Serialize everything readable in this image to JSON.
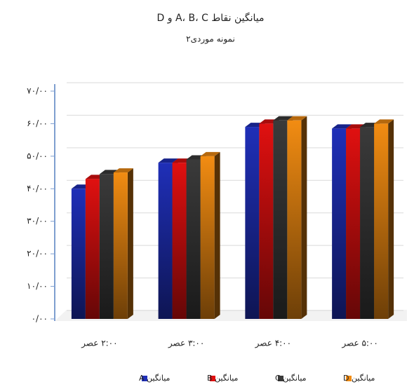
{
  "chart_data": {
    "type": "bar",
    "title": "میانگین نقاط A، B، C و D",
    "subtitle": "نمونه موردی۲",
    "categories": [
      "۲:۰۰ عصر",
      "۳:۰۰ عصر",
      "۴:۰۰ عصر",
      "۵:۰۰ عصر"
    ],
    "series": [
      {
        "name": "میانگین A",
        "color": "#1f2fb8",
        "values": [
          40,
          48,
          59,
          58.5
        ]
      },
      {
        "name": "میانگین B",
        "color": "#e01010",
        "values": [
          43,
          48,
          60,
          58.5
        ]
      },
      {
        "name": "میانگین C",
        "color": "#3a3a3a",
        "values": [
          44.5,
          49,
          61,
          59
        ]
      },
      {
        "name": "میانگین D",
        "color": "#f28c12",
        "values": [
          45,
          50,
          61,
          60
        ]
      }
    ],
    "ylim": [
      0,
      70
    ],
    "yticks": [
      {
        "value": 0,
        "label": "۰/۰۰"
      },
      {
        "value": 10,
        "label": "۱۰/۰۰"
      },
      {
        "value": 20,
        "label": "۲۰/۰۰"
      },
      {
        "value": 30,
        "label": "۳۰/۰۰"
      },
      {
        "value": 40,
        "label": "۴۰/۰۰"
      },
      {
        "value": 50,
        "label": "۵۰/۰۰"
      },
      {
        "value": 60,
        "label": "۶۰/۰۰"
      },
      {
        "value": 70,
        "label": "۷۰/۰۰"
      }
    ],
    "grid": true
  }
}
